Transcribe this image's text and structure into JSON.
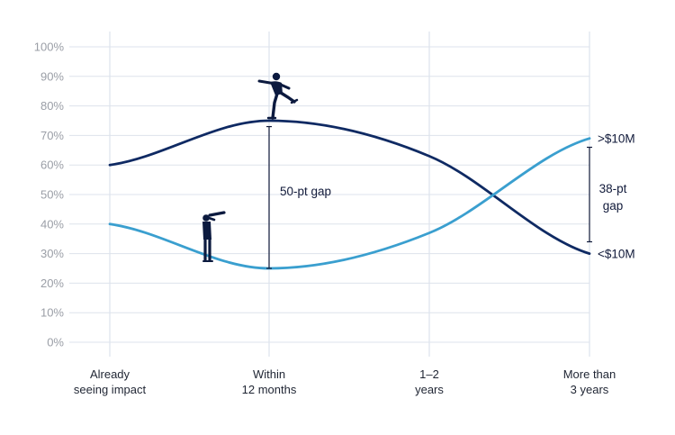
{
  "chart_data": {
    "type": "line",
    "categories": [
      "Already seeing impact",
      "Within 12 months",
      "1–2 years",
      "More than 3 years"
    ],
    "category_lines": [
      [
        "Already",
        "seeing impact"
      ],
      [
        "Within",
        "12 months"
      ],
      [
        "1–2",
        "years"
      ],
      [
        "More than",
        "3 years"
      ]
    ],
    "ylim": [
      0,
      100
    ],
    "y_ticks": [
      0,
      10,
      20,
      30,
      40,
      50,
      60,
      70,
      80,
      90,
      100
    ],
    "y_tick_labels": [
      "0%",
      "10%",
      "20%",
      "30%",
      "40%",
      "50%",
      "60%",
      "70%",
      "80%",
      "90%",
      "100%"
    ],
    "grid": true,
    "series": [
      {
        "name": "<$10M",
        "values": [
          60,
          75,
          63,
          30
        ],
        "color": "#0f2a63"
      },
      {
        "name": ">$10M",
        "values": [
          40,
          25,
          37,
          69
        ],
        "color": "#3a9fcf"
      }
    ],
    "annotations": [
      {
        "label": "50-pt gap",
        "x_category": "Within 12 months",
        "y_from": 25,
        "y_to": 73
      },
      {
        "label_lines": [
          "38-pt",
          "gap"
        ],
        "x_category": "More than 3 years",
        "y_from": 34,
        "y_to": 66
      }
    ],
    "axis_color": "#dde3ec"
  }
}
